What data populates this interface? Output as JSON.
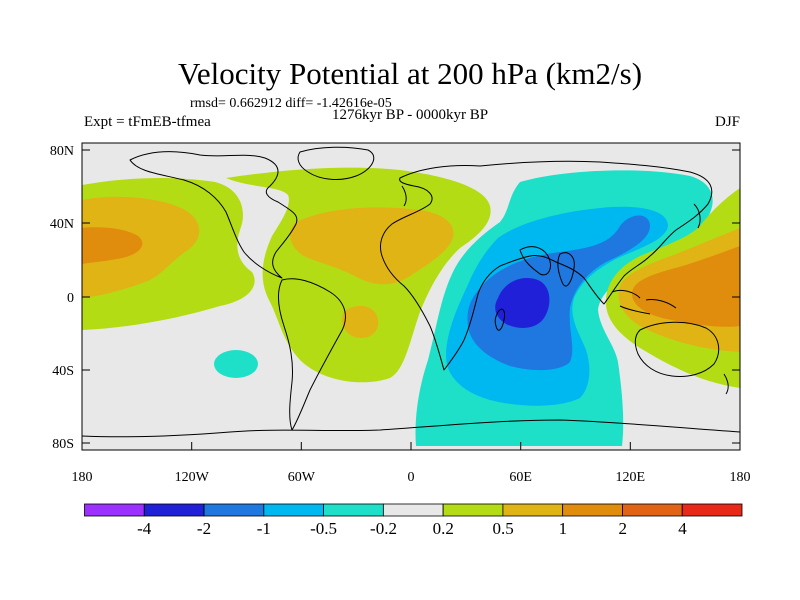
{
  "figure": {
    "title": "Velocity Potential at 200 hPa (km2/s)",
    "stats": "rmsd= 0.662912 diff= -1.42616e-05",
    "experiment": "Expt = tFmEB-tfmea",
    "period": "1276kyr BP - 0000kyr BP",
    "season": "DJF"
  },
  "map": {
    "lat_ticks": [
      "80N",
      "40N",
      "0",
      "40S",
      "80S"
    ],
    "lon_ticks": [
      "180",
      "120W",
      "60W",
      "0",
      "60E",
      "120E",
      "180"
    ],
    "ocean_color": "#e8e8e8",
    "coastline_color": "#000000"
  },
  "colorbar": {
    "colors": [
      "#9b30ff",
      "#2020d8",
      "#1e78e0",
      "#00b8f0",
      "#1ee0c8",
      "#e8e8e8",
      "#b4dc14",
      "#e0b414",
      "#e08c0c",
      "#e06414",
      "#e82818"
    ],
    "labels": [
      "-4",
      "-2",
      "-1",
      "-0.5",
      "-0.2",
      "0.2",
      "0.5",
      "1",
      "2",
      "4"
    ]
  }
}
